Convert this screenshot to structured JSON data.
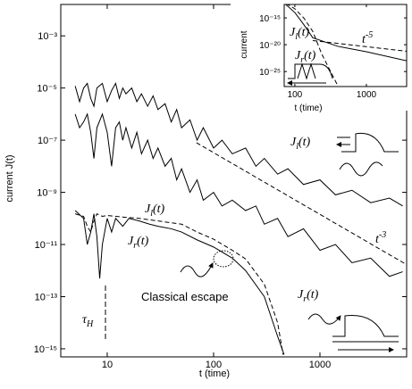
{
  "chart_data": [
    {
      "type": "line",
      "x_label": "t (time)",
      "y_label": "current J(t)",
      "log_x": true,
      "log_y": true,
      "xlim": [
        3.66,
        6530
      ],
      "ylim": [
        4.9e-16,
        0.016
      ],
      "xticks": [
        10,
        100,
        1000
      ],
      "yticks": [
        {
          "value": 1e-15,
          "label": "10⁻¹⁵"
        },
        {
          "value": 1e-13,
          "label": "10⁻¹³"
        },
        {
          "value": 1e-11,
          "label": "10⁻¹¹"
        },
        {
          "value": 1e-09,
          "label": "10⁻⁹"
        },
        {
          "value": 1e-07,
          "label": "10⁻⁷"
        },
        {
          "value": 1e-05,
          "label": "10⁻⁵"
        },
        {
          "value": 0.001,
          "label": "10⁻³"
        }
      ],
      "series": [
        {
          "style": "solid",
          "color": "#000000",
          "x": [
            5,
            5.5,
            6,
            6.5,
            7,
            7.5,
            8,
            9,
            10,
            11,
            12,
            13,
            14,
            15,
            17,
            19,
            21,
            24,
            27,
            30,
            35,
            40,
            45,
            50,
            60,
            70,
            80,
            100,
            120,
            150,
            200,
            250,
            300,
            400,
            500,
            700,
            1000,
            1400,
            2000,
            3000,
            4500,
            6000
          ],
          "values": [
            1.2e-05,
            3e-06,
            1e-05,
            1.5e-05,
            4e-06,
            2e-06,
            1e-05,
            1.5e-05,
            3e-06,
            8e-06,
            1.5e-05,
            4e-06,
            1e-05,
            6e-06,
            1e-05,
            3e-06,
            6e-06,
            2e-06,
            5e-06,
            1.5e-06,
            2.5e-06,
            5e-07,
            1.5e-06,
            3e-07,
            6e-07,
            1e-07,
            3e-07,
            5e-08,
            1e-07,
            3e-08,
            5e-08,
            1e-08,
            2e-08,
            5e-09,
            8e-09,
            2e-09,
            3e-09,
            8e-10,
            1.2e-09,
            4e-10,
            6e-10,
            3e-10
          ]
        },
        {
          "style": "solid",
          "color": "#000000",
          "x": [
            5,
            5.5,
            6,
            6.5,
            7,
            7.5,
            8,
            9,
            10,
            11,
            12,
            13,
            14,
            15,
            17,
            19,
            21,
            24,
            27,
            30,
            35,
            40,
            45,
            50,
            60,
            70,
            80,
            100,
            120,
            150,
            200,
            250,
            300,
            400,
            500,
            700,
            1000,
            1400,
            2000,
            3000,
            4500,
            6000
          ],
          "values": [
            1e-06,
            3e-07,
            5e-07,
            1e-06,
            2e-07,
            2e-08,
            3e-07,
            1e-06,
            2e-07,
            1e-08,
            3e-07,
            5e-07,
            1e-07,
            3e-07,
            5e-08,
            2e-07,
            3e-08,
            1e-07,
            2e-08,
            5e-08,
            1e-08,
            2e-08,
            3e-09,
            8e-09,
            1e-09,
            3e-09,
            5e-10,
            1e-09,
            3e-10,
            5e-10,
            2e-10,
            3e-10,
            6e-11,
            1e-10,
            2e-11,
            4e-11,
            6e-12,
            1e-11,
            2e-12,
            3e-12,
            6e-13,
            9e-13
          ]
        },
        {
          "style": "dashed",
          "color": "#000000",
          "x": [
            5,
            6,
            6.5,
            7,
            7.5,
            8,
            9,
            10,
            12,
            15,
            20,
            30,
            50,
            70,
            100,
            150,
            200,
            300,
            400,
            450
          ],
          "values": [
            1.5e-10,
            1.2e-10,
            5e-11,
            3e-11,
            8e-11,
            1.5e-10,
            1.2e-10,
            1.3e-10,
            1.2e-10,
            1.1e-10,
            1e-10,
            8e-11,
            6e-11,
            3e-11,
            1.6e-11,
            6e-12,
            2.8e-12,
            3e-13,
            1e-14,
            6e-16
          ]
        },
        {
          "style": "solid",
          "color": "#000000",
          "x": [
            5,
            6,
            6.5,
            7,
            7.5,
            8,
            8.5,
            9,
            10,
            11,
            12,
            14,
            16,
            20,
            25,
            30,
            40,
            50,
            70,
            100,
            150,
            200,
            300,
            400,
            460
          ],
          "values": [
            2e-10,
            1e-10,
            1e-11,
            3e-11,
            1.5e-10,
            2e-11,
            5e-13,
            1e-11,
            1e-10,
            3e-11,
            1e-10,
            5e-11,
            1e-10,
            8e-11,
            6e-11,
            5e-11,
            4e-11,
            3e-11,
            1.5e-11,
            8e-12,
            3e-12,
            1e-12,
            1e-13,
            3e-15,
            6e-16
          ]
        },
        {
          "style": "dashed",
          "color": "#000000",
          "x": [
            69,
            6500
          ],
          "values": [
            8e-08,
            1.7e-12
          ]
        }
      ],
      "annotations": [
        {
          "text": "J",
          "sub": "l",
          "tail": "(t)"
        },
        {
          "text": "J",
          "sub": "l",
          "tail": "(t)"
        },
        {
          "text": "J",
          "sub": "r",
          "tail": "(t)"
        },
        {
          "text": "Classical escape"
        },
        {
          "text": "τ",
          "sub": "H"
        },
        {
          "text": "t",
          "sup": "-3"
        },
        {
          "text": "J",
          "sub": "r",
          "tail": "(t)"
        }
      ]
    },
    {
      "type": "line",
      "x_label": "t (time)",
      "y_label": "current",
      "log_x": true,
      "log_y": true,
      "xlim": [
        71,
        3650
      ],
      "ylim": [
        1.6e-28,
        3.2e-13
      ],
      "xticks": [
        100,
        1000
      ],
      "yticks": [
        {
          "value": 1e-25,
          "label": "10⁻²⁵"
        },
        {
          "value": 1e-20,
          "label": "10⁻²⁰"
        },
        {
          "value": 1e-15,
          "label": "10⁻¹⁵"
        }
      ],
      "series": [
        {
          "style": "solid",
          "color": "#000000",
          "x": [
            75,
            100,
            133,
            178,
            400,
            1000,
            3650
          ],
          "values": [
            3e-13,
            1e-14,
            6e-17,
            2e-19,
            5e-21,
            5e-22,
            1e-23
          ]
        },
        {
          "style": "dashed",
          "color": "#000000",
          "x": [
            75,
            100,
            133,
            178,
            237,
            316,
            400
          ],
          "values": [
            5e-13,
            5e-14,
            1e-15,
            3e-18,
            2e-22,
            1e-25,
            2e-28
          ]
        },
        {
          "style": "dashed",
          "color": "#000000",
          "x": [
            178,
            3650
          ],
          "values": [
            6e-20,
            6e-22
          ]
        }
      ],
      "annotations": [
        {
          "text": "J",
          "sub": "l",
          "tail": "(t)"
        },
        {
          "text": "J",
          "sub": "r",
          "tail": "(t)"
        },
        {
          "text": "t",
          "sup": "-5"
        }
      ]
    }
  ]
}
